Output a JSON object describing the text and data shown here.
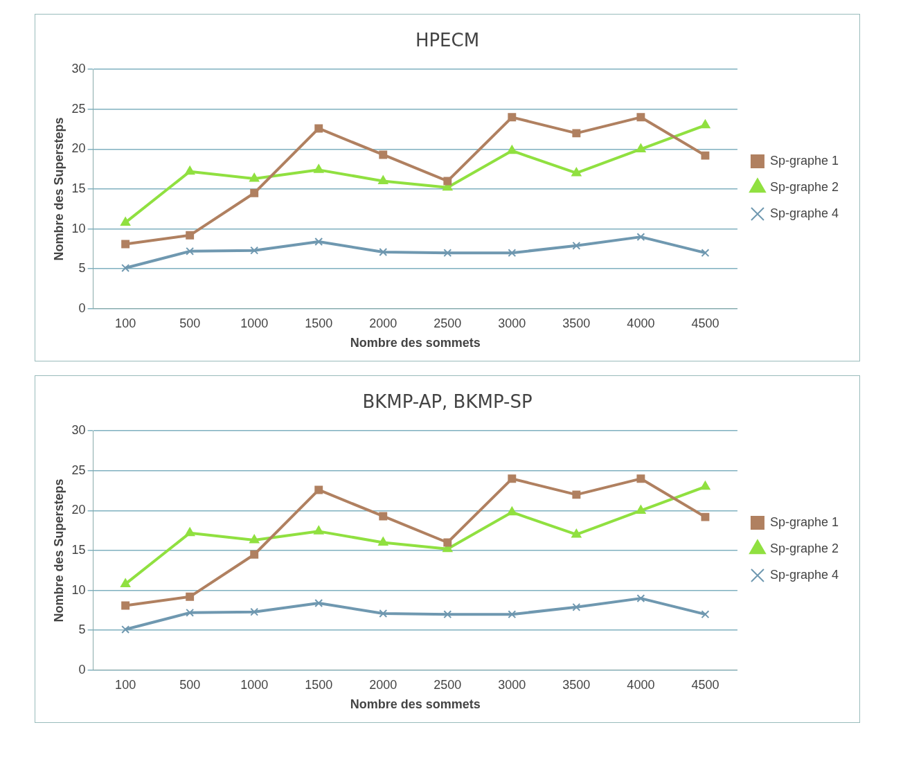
{
  "chart_data": [
    {
      "type": "line",
      "title": "HPECM",
      "xlabel": "Nombre des sommets",
      "ylabel": "Nombre des Supersteps",
      "categories": [
        "100",
        "500",
        "1000",
        "1500",
        "2000",
        "2500",
        "3000",
        "3500",
        "4000",
        "4500"
      ],
      "ylim": [
        0,
        30
      ],
      "yticks": [
        0,
        5,
        10,
        15,
        20,
        25,
        30
      ],
      "grid": "y",
      "legend": "right",
      "line_style": "solid",
      "series": [
        {
          "name": "Sp-graphe 1",
          "color": "#b08060",
          "marker": "square",
          "values": [
            8.1,
            9.2,
            14.5,
            22.6,
            19.3,
            16,
            24,
            22,
            24,
            19.2
          ]
        },
        {
          "name": "Sp-graphe 2",
          "color": "#90e040",
          "marker": "triangle",
          "values": [
            10.8,
            17.2,
            16.3,
            17.4,
            16,
            15.2,
            19.8,
            17,
            20,
            23
          ]
        },
        {
          "name": "Sp-graphe 4",
          "color": "#6f98b0",
          "marker": "cross",
          "values": [
            5.1,
            7.2,
            7.3,
            8.4,
            7.1,
            7,
            7,
            7.9,
            9,
            7
          ]
        }
      ]
    },
    {
      "type": "line",
      "title": "BKMP-AP, BKMP-SP",
      "xlabel": "Nombre des sommets",
      "ylabel": "Nombre des Supersteps",
      "categories": [
        "100",
        "500",
        "1000",
        "1500",
        "2000",
        "2500",
        "3000",
        "3500",
        "4000",
        "4500"
      ],
      "ylim": [
        0,
        30
      ],
      "yticks": [
        0,
        5,
        10,
        15,
        20,
        25,
        30
      ],
      "grid": "y",
      "legend": "right",
      "line_style": "solid",
      "series": [
        {
          "name": "Sp-graphe 1",
          "color": "#b08060",
          "marker": "square",
          "values": [
            8.1,
            9.2,
            14.5,
            22.6,
            19.3,
            16,
            24,
            22,
            24,
            19.2
          ]
        },
        {
          "name": "Sp-graphe 2",
          "color": "#90e040",
          "marker": "triangle",
          "values": [
            10.8,
            17.2,
            16.3,
            17.4,
            16,
            15.2,
            19.8,
            17,
            20,
            23
          ]
        },
        {
          "name": "Sp-graphe 4",
          "color": "#6f98b0",
          "marker": "cross",
          "values": [
            5.1,
            7.2,
            7.3,
            8.4,
            7.1,
            7,
            7,
            7.9,
            9,
            7
          ]
        }
      ]
    }
  ]
}
